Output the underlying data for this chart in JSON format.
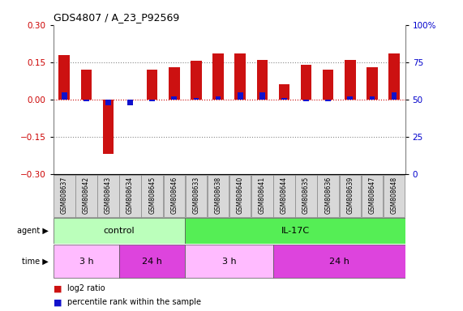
{
  "title": "GDS4807 / A_23_P92569",
  "samples": [
    "GSM808637",
    "GSM808642",
    "GSM808643",
    "GSM808634",
    "GSM808645",
    "GSM808646",
    "GSM808633",
    "GSM808638",
    "GSM808640",
    "GSM808641",
    "GSM808644",
    "GSM808635",
    "GSM808636",
    "GSM808639",
    "GSM808647",
    "GSM808648"
  ],
  "log2_ratio": [
    0.18,
    0.12,
    -0.22,
    0.0,
    0.12,
    0.13,
    0.155,
    0.185,
    0.185,
    0.16,
    0.06,
    0.14,
    0.12,
    0.16,
    0.13,
    0.185
  ],
  "percentile_rank": [
    55,
    49,
    46,
    46,
    49,
    52,
    51,
    52,
    55,
    55,
    51,
    49,
    49,
    52,
    52,
    55
  ],
  "ylim_left": [
    -0.3,
    0.3
  ],
  "ylim_right": [
    0,
    100
  ],
  "yticks_left": [
    -0.3,
    -0.15,
    0.0,
    0.15,
    0.3
  ],
  "yticks_right": [
    0,
    25,
    50,
    75,
    100
  ],
  "ytick_labels_right": [
    "0",
    "25",
    "50",
    "75",
    "100%"
  ],
  "hlines": [
    0.15,
    0.0,
    -0.15
  ],
  "bar_color_red": "#cc1111",
  "bar_color_blue": "#1111cc",
  "bar_width": 0.5,
  "blue_bar_width": 0.25,
  "agent_groups": [
    {
      "label": "control",
      "start": 0,
      "end": 6,
      "color": "#bbffbb"
    },
    {
      "label": "IL-17C",
      "start": 6,
      "end": 16,
      "color": "#55ee55"
    }
  ],
  "time_groups": [
    {
      "label": "3 h",
      "start": 0,
      "end": 3,
      "color": "#ffbbff"
    },
    {
      "label": "24 h",
      "start": 3,
      "end": 6,
      "color": "#dd44dd"
    },
    {
      "label": "3 h",
      "start": 6,
      "end": 10,
      "color": "#ffbbff"
    },
    {
      "label": "24 h",
      "start": 10,
      "end": 16,
      "color": "#dd44dd"
    }
  ],
  "legend_red": "log2 ratio",
  "legend_blue": "percentile rank within the sample",
  "bg_color": "#ffffff",
  "tick_label_color_left": "#cc0000",
  "tick_label_color_right": "#0000cc",
  "zero_line_color": "#cc0000",
  "dotted_line_color": "#888888"
}
